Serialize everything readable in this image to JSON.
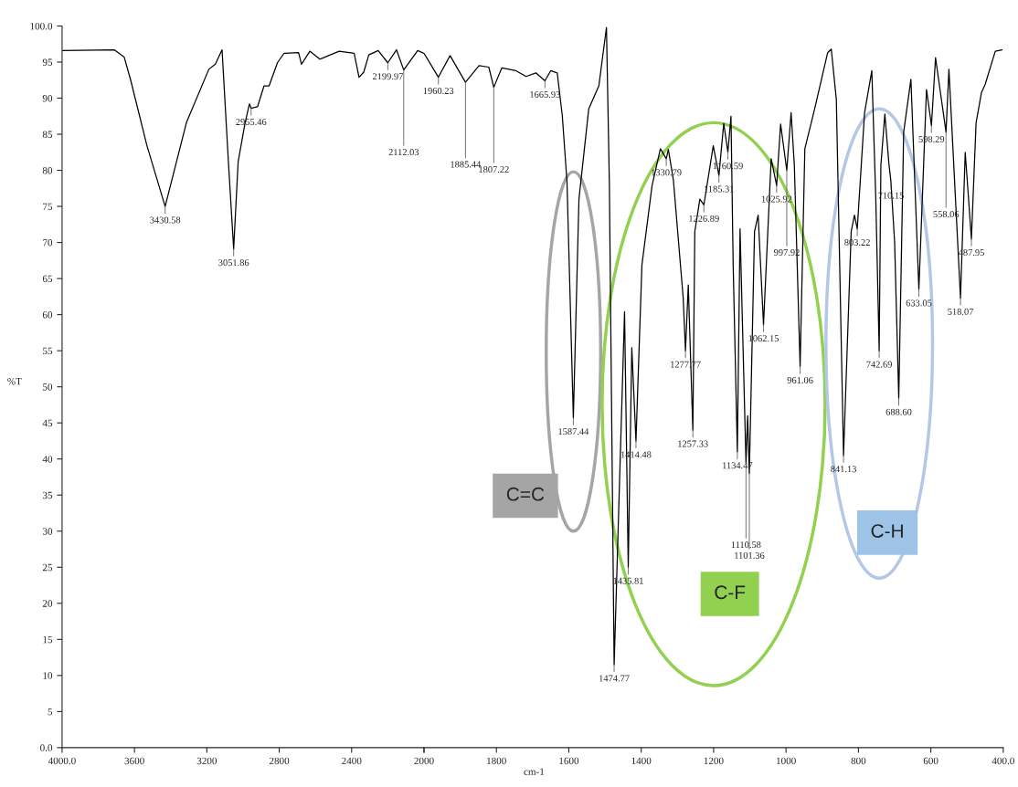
{
  "chart_data": [
    {
      "type": "line",
      "ylabel": "%T",
      "x": [
        4000,
        3712,
        3657,
        3621,
        3532,
        3430.58,
        3313,
        3189,
        3153,
        3116,
        3081,
        3051.86,
        3027,
        2990,
        2965,
        2955.46,
        2920,
        2884,
        2856,
        2810,
        2774,
        2693,
        2677,
        2631,
        2576,
        2469,
        2386,
        2359,
        2333,
        2305,
        2253,
        2199.97,
        2152,
        2112.03,
        2035,
        2000
      ],
      "series": [
        {
          "color": "#000000",
          "values": [
            96.6,
            96.7,
            95.7,
            92.5,
            83.5,
            75.0,
            86.6,
            94.0,
            94.7,
            96.7,
            81.2,
            69.1,
            81.2,
            86.4,
            89.2,
            88.6,
            88.8,
            91.7,
            91.7,
            94.9,
            96.2,
            96.3,
            94.7,
            96.5,
            95.4,
            96.5,
            96.2,
            92.9,
            93.6,
            96.0,
            96.6,
            94.9,
            96.7,
            93.9,
            96.6,
            96.2
          ]
        }
      ],
      "xlim": [
        4000,
        2000
      ],
      "xticks": [
        {
          "value": 4000,
          "label": "4000.0"
        },
        3600,
        3200,
        2800,
        2400,
        2000
      ],
      "ylim": [
        0,
        100
      ],
      "yticks": [
        {
          "value": 0,
          "label": "0.0"
        },
        5,
        10,
        15,
        20,
        25,
        30,
        35,
        40,
        45,
        50,
        55,
        60,
        65,
        70,
        75,
        80,
        85,
        90,
        95,
        {
          "value": 100,
          "label": "100.0"
        }
      ],
      "grid": false,
      "marker": "none",
      "line_style": "solid",
      "annotations": [
        {
          "text": "3430.58",
          "x": 3430.58,
          "y": 75.0
        },
        {
          "text": "3051.86",
          "x": 3051.86,
          "y": 69.1
        },
        {
          "text": "2955.46",
          "x": 2955.46,
          "y": 88.6
        },
        {
          "text": "2199.97",
          "x": 2199.97,
          "y": 94.9
        },
        {
          "text": "2112.03",
          "x": 2112.03,
          "y": 93.9
        }
      ]
    },
    {
      "type": "line",
      "xlabel": "cm-1",
      "tick_labels": "x",
      "x": [
        2000,
        1990,
        1960.23,
        1928,
        1885.44,
        1848,
        1821,
        1807.22,
        1785,
        1746,
        1718,
        1691,
        1665.93,
        1650,
        1632,
        1618,
        1605,
        1587.44,
        1572,
        1545,
        1517,
        1496,
        1488,
        1474.77,
        1446,
        1435.81,
        1426,
        1414.48,
        1398,
        1370,
        1347,
        1330.79,
        1325,
        1311,
        1284,
        1277.77,
        1270,
        1257.33,
        1252,
        1238,
        1226.89,
        1201,
        1185.31,
        1172,
        1160.59,
        1152,
        1146,
        1134.47,
        1127,
        1110.58,
        1106,
        1101.36,
        1087,
        1077,
        1062.15,
        1041,
        1025.92,
        1015,
        997.92,
        986,
        977,
        961.06,
        948,
        921,
        885,
        875,
        861,
        841.13,
        820,
        811,
        803.22,
        783,
        763,
        752,
        742.69,
        738,
        727,
        716,
        710.15,
        700,
        688.6,
        675,
        655,
        633.05,
        612,
        598.29,
        587,
        558.06,
        550,
        518.07,
        505,
        487.95,
        475,
        460,
        450,
        422,
        403
      ],
      "series": [
        {
          "color": "#000000",
          "values": [
            96.2,
            95.4,
            92.9,
            95.9,
            92.2,
            94.5,
            94.3,
            91.5,
            94.2,
            93.8,
            93.0,
            93.5,
            92.4,
            93.8,
            93.5,
            87.6,
            78.4,
            45.7,
            76.0,
            88.5,
            91.7,
            99.8,
            78.4,
            11.5,
            60.4,
            25.0,
            55.4,
            42.5,
            66.9,
            77.9,
            83.0,
            81.6,
            82.9,
            78.6,
            62.3,
            55.0,
            64.1,
            44.0,
            71.5,
            76.0,
            75.2,
            83.4,
            79.3,
            86.5,
            82.5,
            87.5,
            66.9,
            41.0,
            71.9,
            39.5,
            46.0,
            38.0,
            71.5,
            73.8,
            58.6,
            81.6,
            77.9,
            86.4,
            80.0,
            88.0,
            80.7,
            52.8,
            83.0,
            88.5,
            96.3,
            96.8,
            89.8,
            40.5,
            71.5,
            73.8,
            71.9,
            88.0,
            93.8,
            76.0,
            55.0,
            80.7,
            87.8,
            81.0,
            78.4,
            70.0,
            48.4,
            85.3,
            92.6,
            63.5,
            91.2,
            86.2,
            95.6,
            85.3,
            94.0,
            62.3,
            82.5,
            70.5,
            86.6,
            90.8,
            91.9,
            96.5,
            96.7
          ]
        }
      ],
      "xlim": [
        2000,
        400
      ],
      "xticks": [
        {
          "value": 2000,
          "label": null
        },
        1800,
        1600,
        1400,
        1200,
        1000,
        800,
        600,
        {
          "value": 400,
          "label": "400.0"
        }
      ],
      "ylim": [
        0,
        100
      ],
      "grid": false,
      "marker": "none",
      "line_style": "solid",
      "annotations": [
        {
          "text": "1960.23",
          "x": 1960.23,
          "y": 92.9
        },
        {
          "text": "1885.44",
          "x": 1885.44,
          "y": 92.2
        },
        {
          "text": "1807.22",
          "x": 1807.22,
          "y": 91.5
        },
        {
          "text": "1665.93",
          "x": 1665.93,
          "y": 92.4
        },
        {
          "text": "1587.44",
          "x": 1587.44,
          "y": 45.7
        },
        {
          "text": "1474.77",
          "x": 1474.77,
          "y": 11.5
        },
        {
          "text": "1435.81",
          "x": 1435.81,
          "y": 25.0
        },
        {
          "text": "1414.48",
          "x": 1414.48,
          "y": 42.5
        },
        {
          "text": "1330.79",
          "x": 1330.79,
          "y": 81.6
        },
        {
          "text": "1277.77",
          "x": 1277.77,
          "y": 55.0
        },
        {
          "text": "1257.33",
          "x": 1257.33,
          "y": 44.0
        },
        {
          "text": "1226.89",
          "x": 1226.89,
          "y": 75.2
        },
        {
          "text": "1185.31",
          "x": 1185.31,
          "y": 79.3
        },
        {
          "text": "1160.59",
          "x": 1160.59,
          "y": 82.5
        },
        {
          "text": "1134.47",
          "x": 1134.47,
          "y": 41.0
        },
        {
          "text": "1110.58",
          "x": 1110.58,
          "y": 39.5
        },
        {
          "text": "1101.36",
          "x": 1101.36,
          "y": 38.0
        },
        {
          "text": "1062.15",
          "x": 1062.15,
          "y": 58.6
        },
        {
          "text": "1025.92",
          "x": 1025.92,
          "y": 77.9
        },
        {
          "text": "997.92",
          "x": 997.92,
          "y": 80.0
        },
        {
          "text": "961.06",
          "x": 961.06,
          "y": 52.8
        },
        {
          "text": "841.13",
          "x": 841.13,
          "y": 40.5
        },
        {
          "text": "803.22",
          "x": 803.22,
          "y": 71.9
        },
        {
          "text": "742.69",
          "x": 742.69,
          "y": 55.0
        },
        {
          "text": "710.15",
          "x": 710.15,
          "y": 78.4
        },
        {
          "text": "688.60",
          "x": 688.6,
          "y": 48.4
        },
        {
          "text": "633.05",
          "x": 633.05,
          "y": 63.5
        },
        {
          "text": "598.29",
          "x": 598.29,
          "y": 86.2
        },
        {
          "text": "558.06",
          "x": 558.06,
          "y": 85.3
        },
        {
          "text": "518.07",
          "x": 518.07,
          "y": 62.3
        },
        {
          "text": "487.95",
          "x": 487.95,
          "y": 70.5
        },
        "C=C",
        "C-F",
        "C-H"
      ]
    }
  ]
}
